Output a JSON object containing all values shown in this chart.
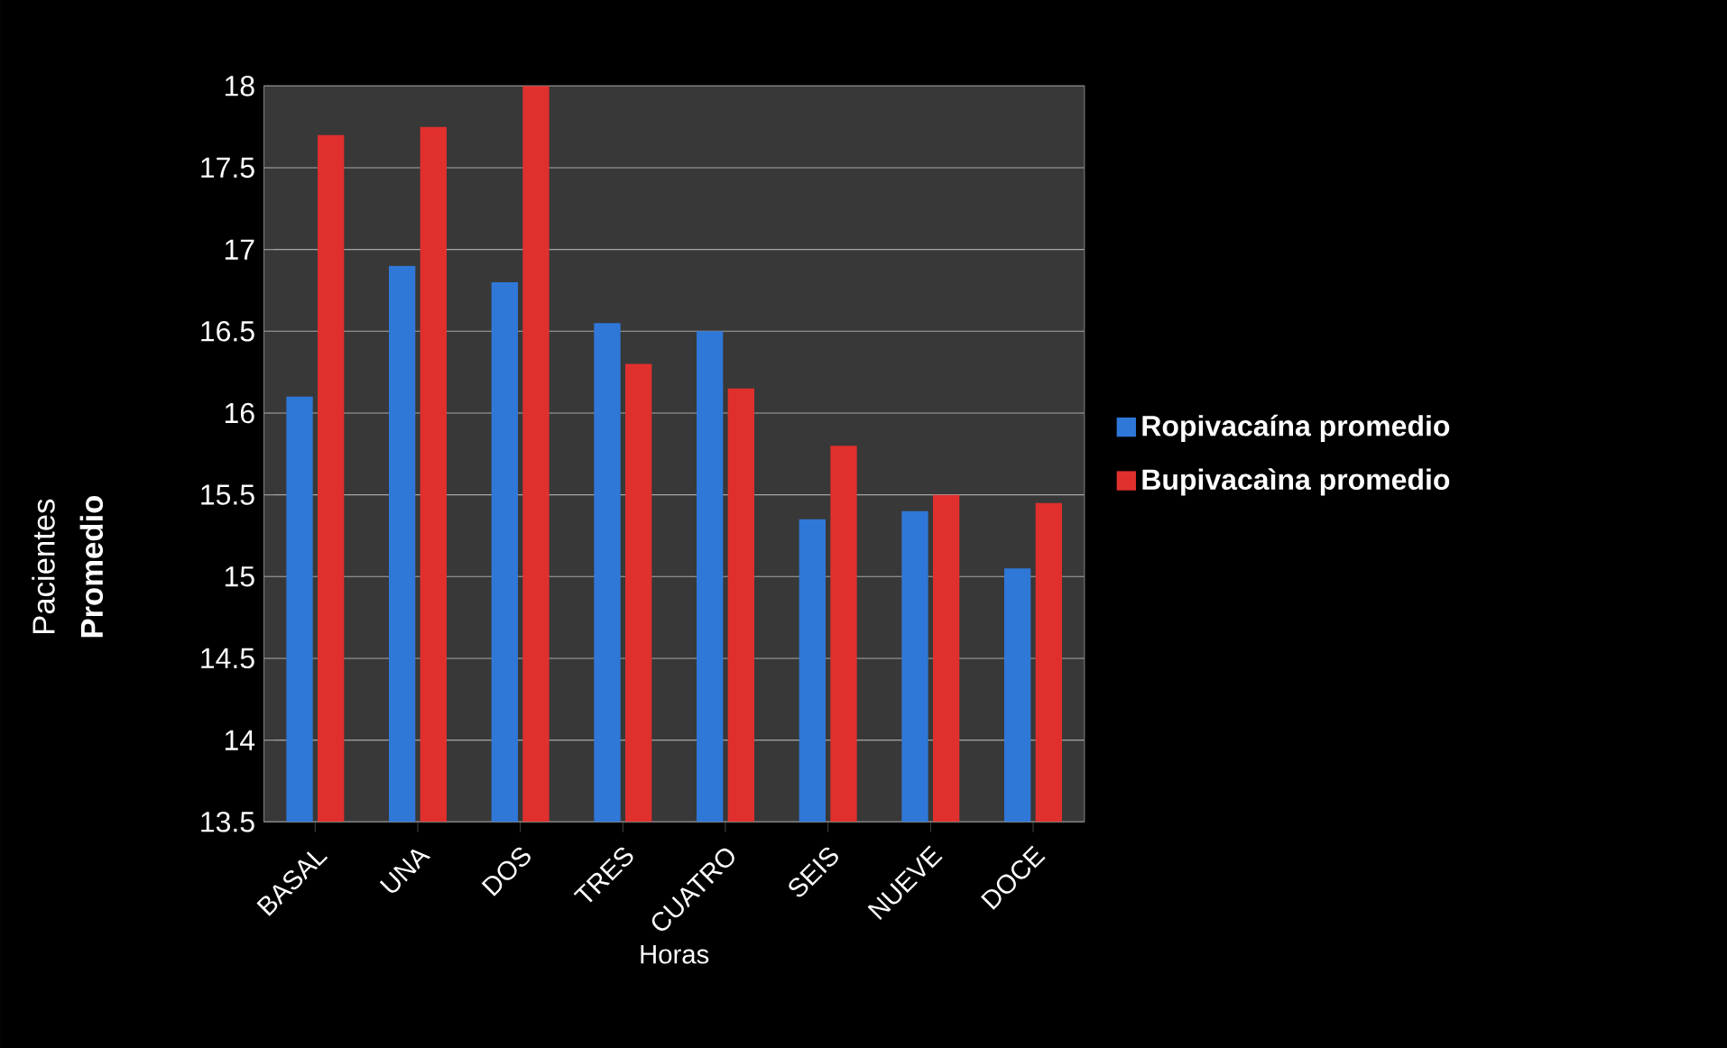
{
  "chart_data": {
    "type": "bar",
    "categories": [
      "BASAL",
      "UNA",
      "DOS",
      "TRES",
      "CUATRO",
      "SEIS",
      "NUEVE",
      "DOCE"
    ],
    "series": [
      {
        "name": "Ropivacaína promedio",
        "color": "#2f78d8",
        "values": [
          16.1,
          16.9,
          16.8,
          16.55,
          16.5,
          15.35,
          15.4,
          15.05
        ]
      },
      {
        "name": "Bupivacaìna promedio",
        "color": "#e0302e",
        "values": [
          17.7,
          17.75,
          18.0,
          16.3,
          16.15,
          15.8,
          15.5,
          15.45
        ]
      }
    ],
    "xlabel": "Horas",
    "ylabel": "Pacientes",
    "annotations": [
      "Promedio"
    ],
    "ylim": [
      13.5,
      18
    ],
    "yticks": [
      13.5,
      14,
      14.5,
      15,
      15.5,
      16,
      16.5,
      17,
      17.5,
      18
    ],
    "grid": "y",
    "legend": "right"
  }
}
